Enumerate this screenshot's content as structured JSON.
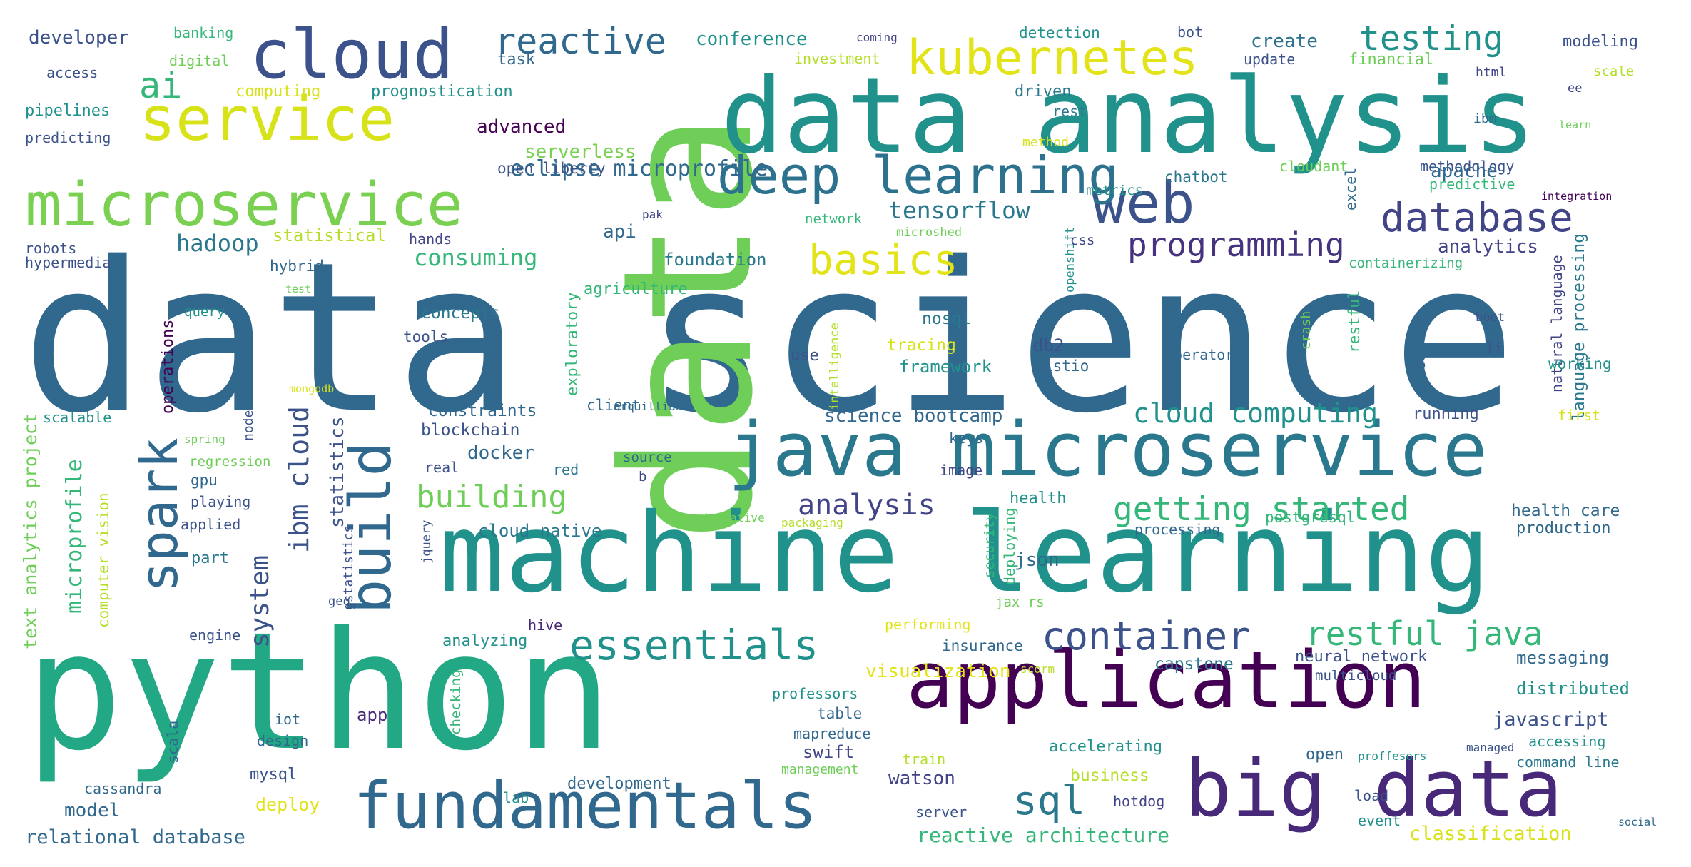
{
  "palette": {
    "dark_purple": "#440154",
    "indigo": "#3b528b",
    "blue": "#31688e",
    "teal": "#21918c",
    "green": "#35b779",
    "light_green": "#6ece58",
    "yellow_green": "#b5de2b",
    "yellow": "#e3e31a",
    "slate": "#414487"
  },
  "words": [
    {
      "text": "data science",
      "c": "#31688e"
    },
    {
      "text": "data",
      "c": "#6ece58"
    },
    {
      "text": "data analysis",
      "c": "#21918c"
    },
    {
      "text": "python",
      "c": "#22a884"
    },
    {
      "text": "machine learning",
      "c": "#21918c"
    },
    {
      "text": "cloud",
      "c": "#3b528b"
    },
    {
      "text": "service",
      "c": "#d8e219"
    },
    {
      "text": "microservice",
      "c": "#7ad151"
    },
    {
      "text": "java microservice",
      "c": "#2a788e"
    },
    {
      "text": "application",
      "c": "#440154"
    },
    {
      "text": "big data",
      "c": "#482878"
    },
    {
      "text": "fundamentals",
      "c": "#31688e"
    },
    {
      "text": "web",
      "c": "#3b528b"
    },
    {
      "text": "kubernetes",
      "c": "#e3e31a"
    },
    {
      "text": "deep learning",
      "c": "#2c728e"
    },
    {
      "text": "database",
      "c": "#414487"
    },
    {
      "text": "spark",
      "c": "#31688e"
    },
    {
      "text": "build",
      "c": "#31688e"
    },
    {
      "text": "essentials",
      "c": "#21918c"
    },
    {
      "text": "container",
      "c": "#3b528b"
    },
    {
      "text": "ai",
      "c": "#35b779"
    },
    {
      "text": "reactive",
      "c": "#31688e"
    },
    {
      "text": "basics",
      "c": "#e3e31a"
    },
    {
      "text": "testing",
      "c": "#21918c"
    },
    {
      "text": "programming",
      "c": "#46327e"
    },
    {
      "text": "sql",
      "c": "#2a788e"
    },
    {
      "text": "restful java",
      "c": "#35b779"
    },
    {
      "text": "getting started",
      "c": "#35b779"
    },
    {
      "text": "building",
      "c": "#6ece58"
    },
    {
      "text": "ibm cloud",
      "c": "#3b528b"
    },
    {
      "text": "system",
      "c": "#3b528b"
    },
    {
      "text": "analysis",
      "c": "#414487"
    },
    {
      "text": "cloud computing",
      "c": "#21918c"
    },
    {
      "text": "tensorflow",
      "c": "#2a788e"
    },
    {
      "text": "eclipse microprofile",
      "c": "#31688e"
    },
    {
      "text": "hadoop",
      "c": "#2a788e"
    },
    {
      "text": "consuming",
      "c": "#35b779"
    },
    {
      "text": "microprofile",
      "c": "#35b779"
    },
    {
      "text": "text analytics project",
      "c": "#6ece58"
    },
    {
      "text": "statistics",
      "c": "#3b528b"
    },
    {
      "text": "computer vision",
      "c": "#b5de2b"
    },
    {
      "text": "science bootcamp",
      "c": "#31688e"
    },
    {
      "text": "conference",
      "c": "#21918c"
    },
    {
      "text": "create",
      "c": "#2c728e"
    },
    {
      "text": "developer",
      "c": "#3b528b"
    },
    {
      "text": "advanced",
      "c": "#440154"
    },
    {
      "text": "serverless",
      "c": "#7ad151"
    },
    {
      "text": "open liberty",
      "c": "#3b528b"
    },
    {
      "text": "prognostication",
      "c": "#21918c"
    },
    {
      "text": "computing",
      "c": "#d8e219"
    },
    {
      "text": "pipelines",
      "c": "#21918c"
    },
    {
      "text": "predicting",
      "c": "#3b528b"
    },
    {
      "text": "access",
      "c": "#3b528b"
    },
    {
      "text": "banking",
      "c": "#35b779"
    },
    {
      "text": "digital",
      "c": "#6ece58"
    },
    {
      "text": "task",
      "c": "#31688e"
    },
    {
      "text": "investment",
      "c": "#b5de2b"
    },
    {
      "text": "coming",
      "c": "#414487"
    },
    {
      "text": "detection",
      "c": "#21918c"
    },
    {
      "text": "bot",
      "c": "#3b528b"
    },
    {
      "text": "update",
      "c": "#3b528b"
    },
    {
      "text": "financial",
      "c": "#6ece58"
    },
    {
      "text": "modeling",
      "c": "#3b528b"
    },
    {
      "text": "html",
      "c": "#414487"
    },
    {
      "text": "scale",
      "c": "#b5de2b"
    },
    {
      "text": "ee",
      "c": "#414487"
    },
    {
      "text": "driven",
      "c": "#2a788e"
    },
    {
      "text": "rest",
      "c": "#2a788e"
    },
    {
      "text": "ibm",
      "c": "#31688e"
    },
    {
      "text": "learn",
      "c": "#6ece58"
    },
    {
      "text": "method",
      "c": "#d8e219"
    },
    {
      "text": "cloudant",
      "c": "#6ece58"
    },
    {
      "text": "methodology",
      "c": "#3b528b"
    },
    {
      "text": "predictive",
      "c": "#35b779"
    },
    {
      "text": "integration",
      "c": "#440154"
    },
    {
      "text": "chatbot",
      "c": "#2a788e"
    },
    {
      "text": "excel",
      "c": "#31688e"
    },
    {
      "text": "metrics",
      "c": "#21918c"
    },
    {
      "text": "network",
      "c": "#35b779"
    },
    {
      "text": "microshed",
      "c": "#6ece58"
    },
    {
      "text": "pak",
      "c": "#414487"
    },
    {
      "text": "statistical",
      "c": "#b5de2b"
    },
    {
      "text": "hands",
      "c": "#414487"
    },
    {
      "text": "hybrid",
      "c": "#31688e"
    },
    {
      "text": "foundation",
      "c": "#2a788e"
    },
    {
      "text": "api",
      "c": "#31688e"
    },
    {
      "text": "apache",
      "c": "#31688e"
    },
    {
      "text": "analytics",
      "c": "#414487"
    },
    {
      "text": "openshift",
      "c": "#21918c"
    },
    {
      "text": "css",
      "c": "#414487"
    },
    {
      "text": "containerizing",
      "c": "#35b779"
    },
    {
      "text": "restful",
      "c": "#35b779"
    },
    {
      "text": "crash",
      "c": "#6ece58"
    },
    {
      "text": "course",
      "c": "#31688e"
    },
    {
      "text": "natural language",
      "c": "#414487"
    },
    {
      "text": "language processing",
      "c": "#2a788e"
    },
    {
      "text": "boot",
      "c": "#3b528b"
    },
    {
      "text": "ii",
      "c": "#3b528b"
    },
    {
      "text": "working",
      "c": "#21918c"
    },
    {
      "text": "first",
      "c": "#d8e219"
    },
    {
      "text": "running",
      "c": "#3b528b"
    },
    {
      "text": "robots",
      "c": "#3b528b"
    },
    {
      "text": "hypermedia",
      "c": "#3b528b"
    },
    {
      "text": "test",
      "c": "#6ece58"
    },
    {
      "text": "query",
      "c": "#21918c"
    },
    {
      "text": "agriculture",
      "c": "#35b779"
    },
    {
      "text": "exploratory",
      "c": "#35b779"
    },
    {
      "text": "intelligence",
      "c": "#b5de2b"
    },
    {
      "text": "use",
      "c": "#3b528b"
    },
    {
      "text": "concepts",
      "c": "#2a788e"
    },
    {
      "text": "tools",
      "c": "#3b528b"
    },
    {
      "text": "nosql",
      "c": "#2a788e"
    },
    {
      "text": "db2",
      "c": "#3b528b"
    },
    {
      "text": "tracing",
      "c": "#d8e219"
    },
    {
      "text": "framework",
      "c": "#21918c"
    },
    {
      "text": "istio",
      "c": "#31688e"
    },
    {
      "text": "operator",
      "c": "#31688e"
    },
    {
      "text": "mongodb",
      "c": "#d8e219"
    },
    {
      "text": "operations",
      "c": "#440154"
    },
    {
      "text": "scalable",
      "c": "#21918c"
    },
    {
      "text": "constraints",
      "c": "#31688e"
    },
    {
      "text": "blockchain",
      "c": "#3b528b"
    },
    {
      "text": "client",
      "c": "#31688e"
    },
    {
      "text": "arquillian",
      "c": "#31688e"
    },
    {
      "text": "spring",
      "c": "#6ece58"
    },
    {
      "text": "node",
      "c": "#3b528b"
    },
    {
      "text": "regression",
      "c": "#6ece58"
    },
    {
      "text": "gpu",
      "c": "#31688e"
    },
    {
      "text": "playing",
      "c": "#3b528b"
    },
    {
      "text": "applied",
      "c": "#3b528b"
    },
    {
      "text": "docker",
      "c": "#31688e"
    },
    {
      "text": "real",
      "c": "#3b528b"
    },
    {
      "text": "red",
      "c": "#2a788e"
    },
    {
      "text": "source",
      "c": "#31688e"
    },
    {
      "text": "b",
      "c": "#414487"
    },
    {
      "text": "keys",
      "c": "#31688e"
    },
    {
      "text": "image",
      "c": "#414487"
    },
    {
      "text": "health",
      "c": "#21918c"
    },
    {
      "text": "security",
      "c": "#35b779"
    },
    {
      "text": "deploying",
      "c": "#35b779"
    },
    {
      "text": "iterative",
      "c": "#6ece58"
    },
    {
      "text": "packaging",
      "c": "#b5de2b"
    },
    {
      "text": "processing",
      "c": "#31688e"
    },
    {
      "text": "postgresql",
      "c": "#35b779"
    },
    {
      "text": "health care",
      "c": "#31688e"
    },
    {
      "text": "production",
      "c": "#31688e"
    },
    {
      "text": "cloud native",
      "c": "#2a788e"
    },
    {
      "text": "part",
      "c": "#2a788e"
    },
    {
      "text": "json",
      "c": "#31688e"
    },
    {
      "text": "jax rs",
      "c": "#6ece58"
    },
    {
      "text": "jquery",
      "c": "#3b528b"
    },
    {
      "text": "geo",
      "c": "#3b528b"
    },
    {
      "text": "gstatistics",
      "c": "#3b528b"
    },
    {
      "text": "engine",
      "c": "#3b528b"
    },
    {
      "text": "analyzing",
      "c": "#21918c"
    },
    {
      "text": "hive",
      "c": "#482878"
    },
    {
      "text": "performing",
      "c": "#e3e31a"
    },
    {
      "text": "insurance",
      "c": "#31688e"
    },
    {
      "text": "scorm",
      "c": "#b5de2b"
    },
    {
      "text": "capstone",
      "c": "#2a788e"
    },
    {
      "text": "neural network",
      "c": "#3b528b"
    },
    {
      "text": "messaging",
      "c": "#31688e"
    },
    {
      "text": "visualization",
      "c": "#e3e31a"
    },
    {
      "text": "professors",
      "c": "#21918c"
    },
    {
      "text": "multicloud",
      "c": "#3b528b"
    },
    {
      "text": "distributed",
      "c": "#21918c"
    },
    {
      "text": "iot",
      "c": "#31688e"
    },
    {
      "text": "app",
      "c": "#482878"
    },
    {
      "text": "table",
      "c": "#31688e"
    },
    {
      "text": "mapreduce",
      "c": "#31688e"
    },
    {
      "text": "checking",
      "c": "#35b779"
    },
    {
      "text": "swift",
      "c": "#414487"
    },
    {
      "text": "javascript",
      "c": "#3b528b"
    },
    {
      "text": "design",
      "c": "#31688e"
    },
    {
      "text": "accelerating",
      "c": "#21918c"
    },
    {
      "text": "open",
      "c": "#31688e"
    },
    {
      "text": "proffesors",
      "c": "#21918c"
    },
    {
      "text": "managed",
      "c": "#3b528b"
    },
    {
      "text": "accessing",
      "c": "#21918c"
    },
    {
      "text": "command line",
      "c": "#2a788e"
    },
    {
      "text": "scala",
      "c": "#31688e"
    },
    {
      "text": "mysql",
      "c": "#3b528b"
    },
    {
      "text": "cassandra",
      "c": "#31688e"
    },
    {
      "text": "train",
      "c": "#b5de2b"
    },
    {
      "text": "management",
      "c": "#6ece58"
    },
    {
      "text": "watson",
      "c": "#414487"
    },
    {
      "text": "business",
      "c": "#b5de2b"
    },
    {
      "text": "model",
      "c": "#31688e"
    },
    {
      "text": "deploy",
      "c": "#e3e31a"
    },
    {
      "text": "lab",
      "c": "#21918c"
    },
    {
      "text": "development",
      "c": "#31688e"
    },
    {
      "text": "server",
      "c": "#3b528b"
    },
    {
      "text": "hotdog",
      "c": "#414487"
    },
    {
      "text": "load",
      "c": "#3b528b"
    },
    {
      "text": "event",
      "c": "#21918c"
    },
    {
      "text": "social",
      "c": "#31688e"
    },
    {
      "text": "relational database",
      "c": "#31688e"
    },
    {
      "text": "reactive architecture",
      "c": "#35b779"
    },
    {
      "text": "classification",
      "c": "#d8e219"
    }
  ]
}
